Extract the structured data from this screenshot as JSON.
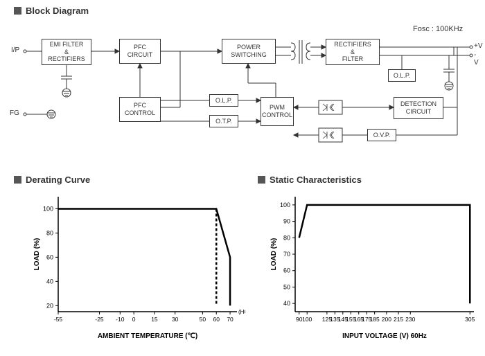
{
  "titles": {
    "block_diagram": "Block Diagram",
    "derating_curve": "Derating Curve",
    "static_char": "Static Characteristics"
  },
  "freq_label": "Fosc : 100KHz",
  "io": {
    "ip": "I/P",
    "fg": "FG",
    "v_plus": "+V",
    "v_minus": "-V",
    "horiz": "(HORIZONTAL)"
  },
  "blocks": {
    "emi": "EMI FILTER\n&\nRECTIFIERS",
    "pfc_circuit": "PFC\nCIRCUIT",
    "pfc_control": "PFC\nCONTROL",
    "power_sw": "POWER\nSWITCHING",
    "pwm": "PWM\nCONTROL",
    "olp1": "O.L.P.",
    "otp": "O.T.P.",
    "rect_filter": "RECTIFIERS\n&\nFILTER",
    "olp2": "O.L.P.",
    "detection": "DETECTION\nCIRCUIT",
    "ovp": "O.V.P."
  },
  "derating": {
    "type": "line",
    "x_label": "AMBIENT TEMPERATURE (℃)",
    "y_label": "LOAD (%)",
    "x_ticks": [
      -55,
      -25,
      -10,
      0,
      15,
      30,
      50,
      60,
      70
    ],
    "y_ticks": [
      20,
      40,
      60,
      80,
      100
    ],
    "xlim": [
      -55,
      75
    ],
    "ylim": [
      15,
      110
    ],
    "solid": [
      [
        -55,
        100
      ],
      [
        60,
        100
      ],
      [
        70,
        60
      ],
      [
        70,
        20
      ]
    ],
    "dashed": [
      [
        60,
        100
      ],
      [
        60,
        20
      ]
    ],
    "line_color": "#000000",
    "line_width": 2.5,
    "grid_color": "#000000",
    "bg": "#ffffff"
  },
  "static": {
    "type": "line",
    "x_label": "INPUT VOLTAGE (V) 60Hz",
    "y_label": "LOAD (%)",
    "x_ticks": [
      90,
      100,
      125,
      135,
      145,
      155,
      165,
      175,
      185,
      200,
      215,
      230,
      305
    ],
    "y_ticks": [
      40,
      50,
      60,
      70,
      80,
      90,
      100
    ],
    "xlim": [
      85,
      310
    ],
    "ylim": [
      35,
      105
    ],
    "solid": [
      [
        90,
        80
      ],
      [
        100,
        100
      ],
      [
        305,
        100
      ],
      [
        305,
        40
      ]
    ],
    "line_color": "#000000",
    "line_width": 2.5,
    "grid_color": "#000000",
    "bg": "#ffffff"
  },
  "colors": {
    "text": "#333333",
    "border": "#333333",
    "bg": "#ffffff"
  }
}
